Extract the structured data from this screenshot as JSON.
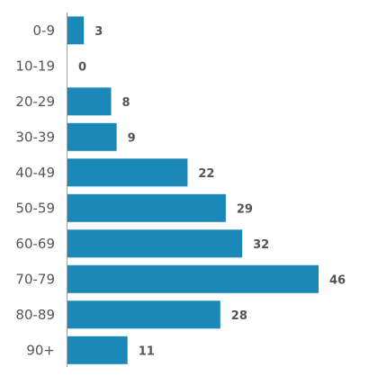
{
  "chart_data": {
    "type": "bar",
    "orientation": "horizontal",
    "categories": [
      "0-9",
      "10-19",
      "20-29",
      "30-39",
      "40-49",
      "50-59",
      "60-69",
      "70-79",
      "80-89",
      "90+"
    ],
    "values": [
      3,
      0,
      8,
      9,
      22,
      29,
      32,
      46,
      28,
      11
    ],
    "title": "",
    "xlabel": "",
    "ylabel": "",
    "xlim": [
      0,
      46
    ],
    "grid": false,
    "legend": "none",
    "bar_color": "#1a88b9",
    "data_labels": true
  }
}
